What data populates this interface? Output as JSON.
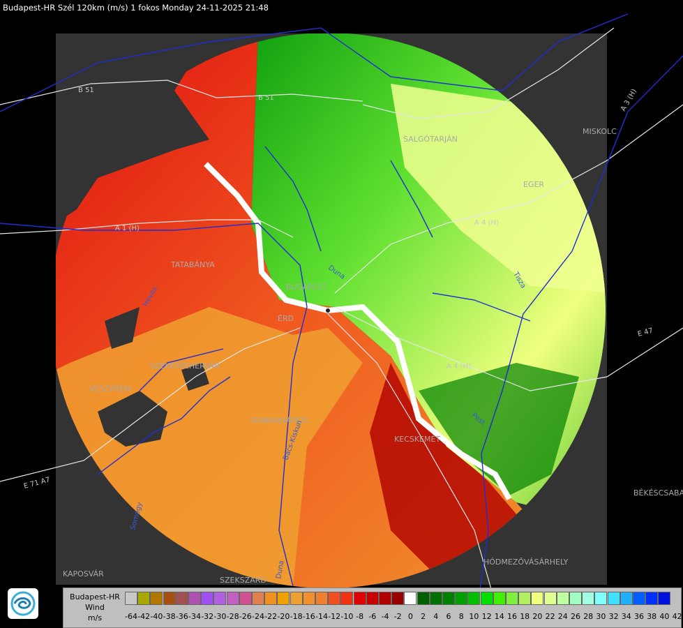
{
  "header": {
    "title": "Budapest-HR Szél 120km (m/s) 1 fokos Monday 24-11-2025 21:48"
  },
  "map_labels": {
    "cities": [
      "SALGÓTARJÁN",
      "EGER",
      "MISKOLC",
      "TATABÁNYA",
      "BUDAPEST",
      "ÉRD",
      "SZÉKESFEHÉRVÁR",
      "VESZPRÉM",
      "DUNAÚJVÁROS",
      "KECSKEMÉT",
      "BÉKÉSCSABA",
      "HÓDMEZŐVÁSÁRHELY",
      "KAPOSVÁR",
      "SZEKSZÁRD"
    ],
    "roads": [
      "B 51",
      "B 51",
      "A 3 (H)",
      "A 1 (H)",
      "A 4 (H)",
      "E 47",
      "E 71 A7",
      "A 4 (H)"
    ],
    "rivers": [
      "Duna",
      "Duna",
      "Tisza",
      "Pest",
      "Bács-Kiskun",
      "Somogy",
      "Heves"
    ]
  },
  "legend": {
    "title_lines": [
      "Budapest-HR",
      "Wind",
      "m/s"
    ],
    "ticks": [
      "-64",
      "-42",
      "-40",
      "-38",
      "-36",
      "-34",
      "-32",
      "-30",
      "-28",
      "-26",
      "-24",
      "-22",
      "-20",
      "-18",
      "-16",
      "-14",
      "-12",
      "-10",
      "-8",
      "-6",
      "-4",
      "-2",
      "0",
      "2",
      "4",
      "6",
      "8",
      "10",
      "12",
      "14",
      "16",
      "18",
      "20",
      "22",
      "24",
      "26",
      "28",
      "30",
      "32",
      "34",
      "36",
      "38",
      "40",
      "42"
    ],
    "colors": [
      "#c8c8c8",
      "#a8a800",
      "#b07800",
      "#a85010",
      "#a05050",
      "#b050b0",
      "#a050f0",
      "#b060e0",
      "#c060c0",
      "#d05090",
      "#e08050",
      "#f09020",
      "#f0a000",
      "#f0a030",
      "#f09030",
      "#f08030",
      "#f05020",
      "#f03010",
      "#e00000",
      "#c80000",
      "#b00000",
      "#980000",
      "#ffffff",
      "#006000",
      "#007000",
      "#008000",
      "#00a000",
      "#00c000",
      "#00e000",
      "#40f000",
      "#80f040",
      "#b0f060",
      "#f0ff80",
      "#e0ff90",
      "#c0ffa0",
      "#a0ffc0",
      "#a0ffe0",
      "#80ffff",
      "#40e0ff",
      "#20b0ff",
      "#0060ff",
      "#0030ff",
      "#0010e0"
    ]
  }
}
